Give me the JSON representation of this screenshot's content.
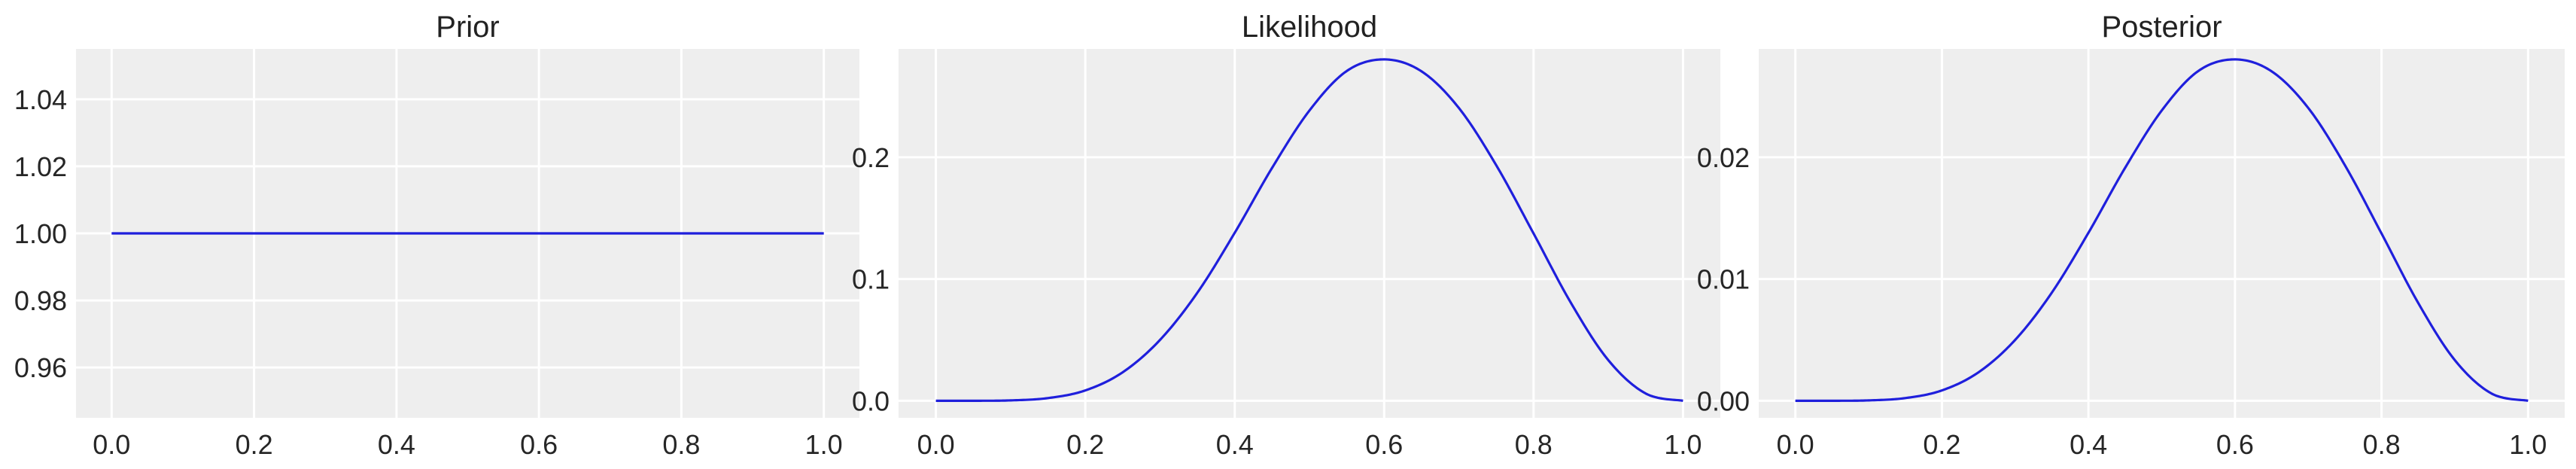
{
  "chart_data": [
    {
      "type": "line",
      "title": "Prior",
      "xlabel": "",
      "ylabel": "",
      "xlim": [
        -0.05,
        1.05
      ],
      "ylim": [
        0.945,
        1.055
      ],
      "xticks": [
        0.0,
        0.2,
        0.4,
        0.6,
        0.8,
        1.0
      ],
      "xtick_labels": [
        "0.0",
        "0.2",
        "0.4",
        "0.6",
        "0.8",
        "1.0"
      ],
      "yticks": [
        0.96,
        0.98,
        1.0,
        1.02,
        1.04
      ],
      "ytick_labels": [
        "0.96",
        "0.98",
        "1.00",
        "1.02",
        "1.04"
      ],
      "grid": true,
      "line_color": "#1f1fdc",
      "background_color": "#eeeeee",
      "series": [
        {
          "x": [
            0.0,
            1.0
          ],
          "y": [
            1.0,
            1.0
          ]
        }
      ]
    },
    {
      "type": "line",
      "title": "Likelihood",
      "xlabel": "",
      "ylabel": "",
      "xlim": [
        -0.05,
        1.05
      ],
      "ylim": [
        -0.014,
        0.289
      ],
      "xticks": [
        0.0,
        0.2,
        0.4,
        0.6,
        0.8,
        1.0
      ],
      "xtick_labels": [
        "0.0",
        "0.2",
        "0.4",
        "0.6",
        "0.8",
        "1.0"
      ],
      "yticks": [
        0.0,
        0.1,
        0.2
      ],
      "ytick_labels": [
        "0.0",
        "0.1",
        "0.2"
      ],
      "grid": true,
      "line_color": "#1f1fdc",
      "background_color": "#eeeeee",
      "series": [
        {
          "x": [
            0.0,
            0.05,
            0.1,
            0.15,
            0.2,
            0.25,
            0.3,
            0.35,
            0.4,
            0.45,
            0.5,
            0.55,
            0.6,
            0.65,
            0.7,
            0.75,
            0.8,
            0.85,
            0.9,
            0.95,
            1.0
          ],
          "y": [
            0.0,
            0.0,
            0.0003,
            0.0022,
            0.0085,
            0.0234,
            0.05,
            0.0888,
            0.138,
            0.1913,
            0.2384,
            0.2709,
            0.2804,
            0.2706,
            0.2405,
            0.1935,
            0.1374,
            0.0804,
            0.0334,
            0.006,
            0.0
          ]
        }
      ]
    },
    {
      "type": "line",
      "title": "Posterior",
      "xlabel": "",
      "ylabel": "",
      "xlim": [
        -0.05,
        1.05
      ],
      "ylim": [
        -0.0014,
        0.0289
      ],
      "xticks": [
        0.0,
        0.2,
        0.4,
        0.6,
        0.8,
        1.0
      ],
      "xtick_labels": [
        "0.0",
        "0.2",
        "0.4",
        "0.6",
        "0.8",
        "1.0"
      ],
      "yticks": [
        0.0,
        0.01,
        0.02
      ],
      "ytick_labels": [
        "0.00",
        "0.01",
        "0.02"
      ],
      "grid": true,
      "line_color": "#1f1fdc",
      "background_color": "#eeeeee",
      "series": [
        {
          "x": [
            0.0,
            0.05,
            0.1,
            0.15,
            0.2,
            0.25,
            0.3,
            0.35,
            0.4,
            0.45,
            0.5,
            0.55,
            0.6,
            0.65,
            0.7,
            0.75,
            0.8,
            0.85,
            0.9,
            0.95,
            1.0
          ],
          "y": [
            0.0,
            0.0,
            3e-05,
            0.00022,
            0.00085,
            0.00234,
            0.005,
            0.00888,
            0.0138,
            0.01913,
            0.02384,
            0.02709,
            0.02804,
            0.02706,
            0.02405,
            0.01935,
            0.01374,
            0.00804,
            0.00334,
            0.0006,
            0.0
          ]
        }
      ]
    }
  ]
}
